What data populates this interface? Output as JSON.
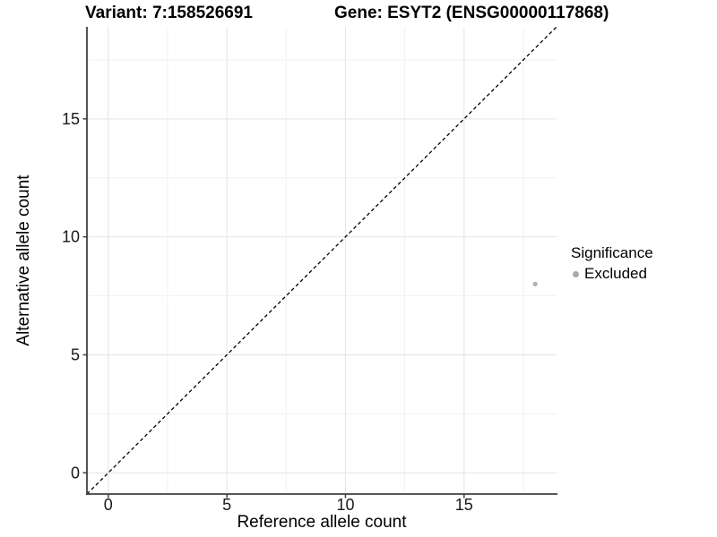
{
  "chart_data": {
    "type": "scatter",
    "title_left": "Variant: 7:158526691",
    "title_right": "Gene: ESYT2 (ENSG00000117868)",
    "xlabel": "Reference allele count",
    "ylabel": "Alternative allele count",
    "xlim": [
      -0.9,
      18.9
    ],
    "ylim": [
      -0.9,
      18.9
    ],
    "x_major_ticks": [
      0,
      5,
      10,
      15
    ],
    "y_major_ticks": [
      0,
      5,
      10,
      15
    ],
    "x_minor_ticks": [
      2.5,
      7.5,
      12.5,
      17.5
    ],
    "y_minor_ticks": [
      2.5,
      7.5,
      12.5,
      17.5
    ],
    "grid": "major+minor",
    "identity_line": {
      "slope": 1,
      "intercept": 0,
      "style": "dashed",
      "color": "#000000"
    },
    "series": [
      {
        "name": "Excluded",
        "color": "#b0b0b0",
        "points": [
          [
            18,
            8
          ]
        ]
      }
    ],
    "legend": {
      "title": "Significance",
      "position": "right",
      "entries": [
        {
          "label": "Excluded",
          "color": "#a9a9a9"
        }
      ]
    }
  },
  "style": {
    "background": "#ffffff",
    "grid_major_color": "#e4e4e4",
    "grid_minor_color": "#f1f1f1",
    "axis_color": "#404040",
    "tick_label_color": "#1a1a1a",
    "point_radius": 2.6,
    "legend_dot_size": 7
  }
}
